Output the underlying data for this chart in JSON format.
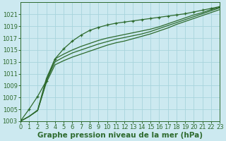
{
  "xlabel": "Graphe pression niveau de la mer (hPa)",
  "background_color": "#cce9f0",
  "grid_color": "#a8d4dc",
  "line_color": "#2d6a2d",
  "ylim": [
    1003,
    1023
  ],
  "xlim": [
    0,
    23
  ],
  "yticks": [
    1003,
    1005,
    1007,
    1009,
    1011,
    1013,
    1015,
    1017,
    1019,
    1021
  ],
  "xticks": [
    0,
    1,
    2,
    3,
    4,
    5,
    6,
    7,
    8,
    9,
    10,
    11,
    12,
    13,
    14,
    15,
    16,
    17,
    18,
    19,
    20,
    21,
    22,
    23
  ],
  "series_no_marker": [
    [
      1003.0,
      1003.8,
      1004.8,
      1009.5,
      1012.5,
      1013.2,
      1013.8,
      1014.3,
      1014.8,
      1015.3,
      1015.8,
      1016.2,
      1016.5,
      1016.9,
      1017.3,
      1017.7,
      1018.2,
      1018.7,
      1019.3,
      1019.8,
      1020.3,
      1020.8,
      1021.3,
      1021.8
    ],
    [
      1003.0,
      1003.8,
      1004.8,
      1009.8,
      1013.0,
      1013.8,
      1014.5,
      1015.0,
      1015.5,
      1016.0,
      1016.4,
      1016.8,
      1017.1,
      1017.4,
      1017.7,
      1018.1,
      1018.6,
      1019.1,
      1019.6,
      1020.1,
      1020.6,
      1021.1,
      1021.6,
      1022.1
    ],
    [
      1003.0,
      1003.8,
      1004.9,
      1010.2,
      1013.5,
      1014.3,
      1015.0,
      1015.6,
      1016.1,
      1016.6,
      1017.0,
      1017.3,
      1017.6,
      1017.9,
      1018.2,
      1018.5,
      1018.9,
      1019.4,
      1019.9,
      1020.4,
      1020.9,
      1021.3,
      1021.8,
      1022.2
    ]
  ],
  "series_marker": [
    1003.0,
    1005.0,
    1007.2,
    1009.8,
    1013.5,
    1015.2,
    1016.5,
    1017.5,
    1018.3,
    1018.8,
    1019.2,
    1019.5,
    1019.7,
    1019.9,
    1020.1,
    1020.3,
    1020.5,
    1020.7,
    1020.9,
    1021.1,
    1021.4,
    1021.7,
    1022.0,
    1022.3
  ],
  "tick_fontsize": 6.0,
  "label_fontsize": 7.5
}
